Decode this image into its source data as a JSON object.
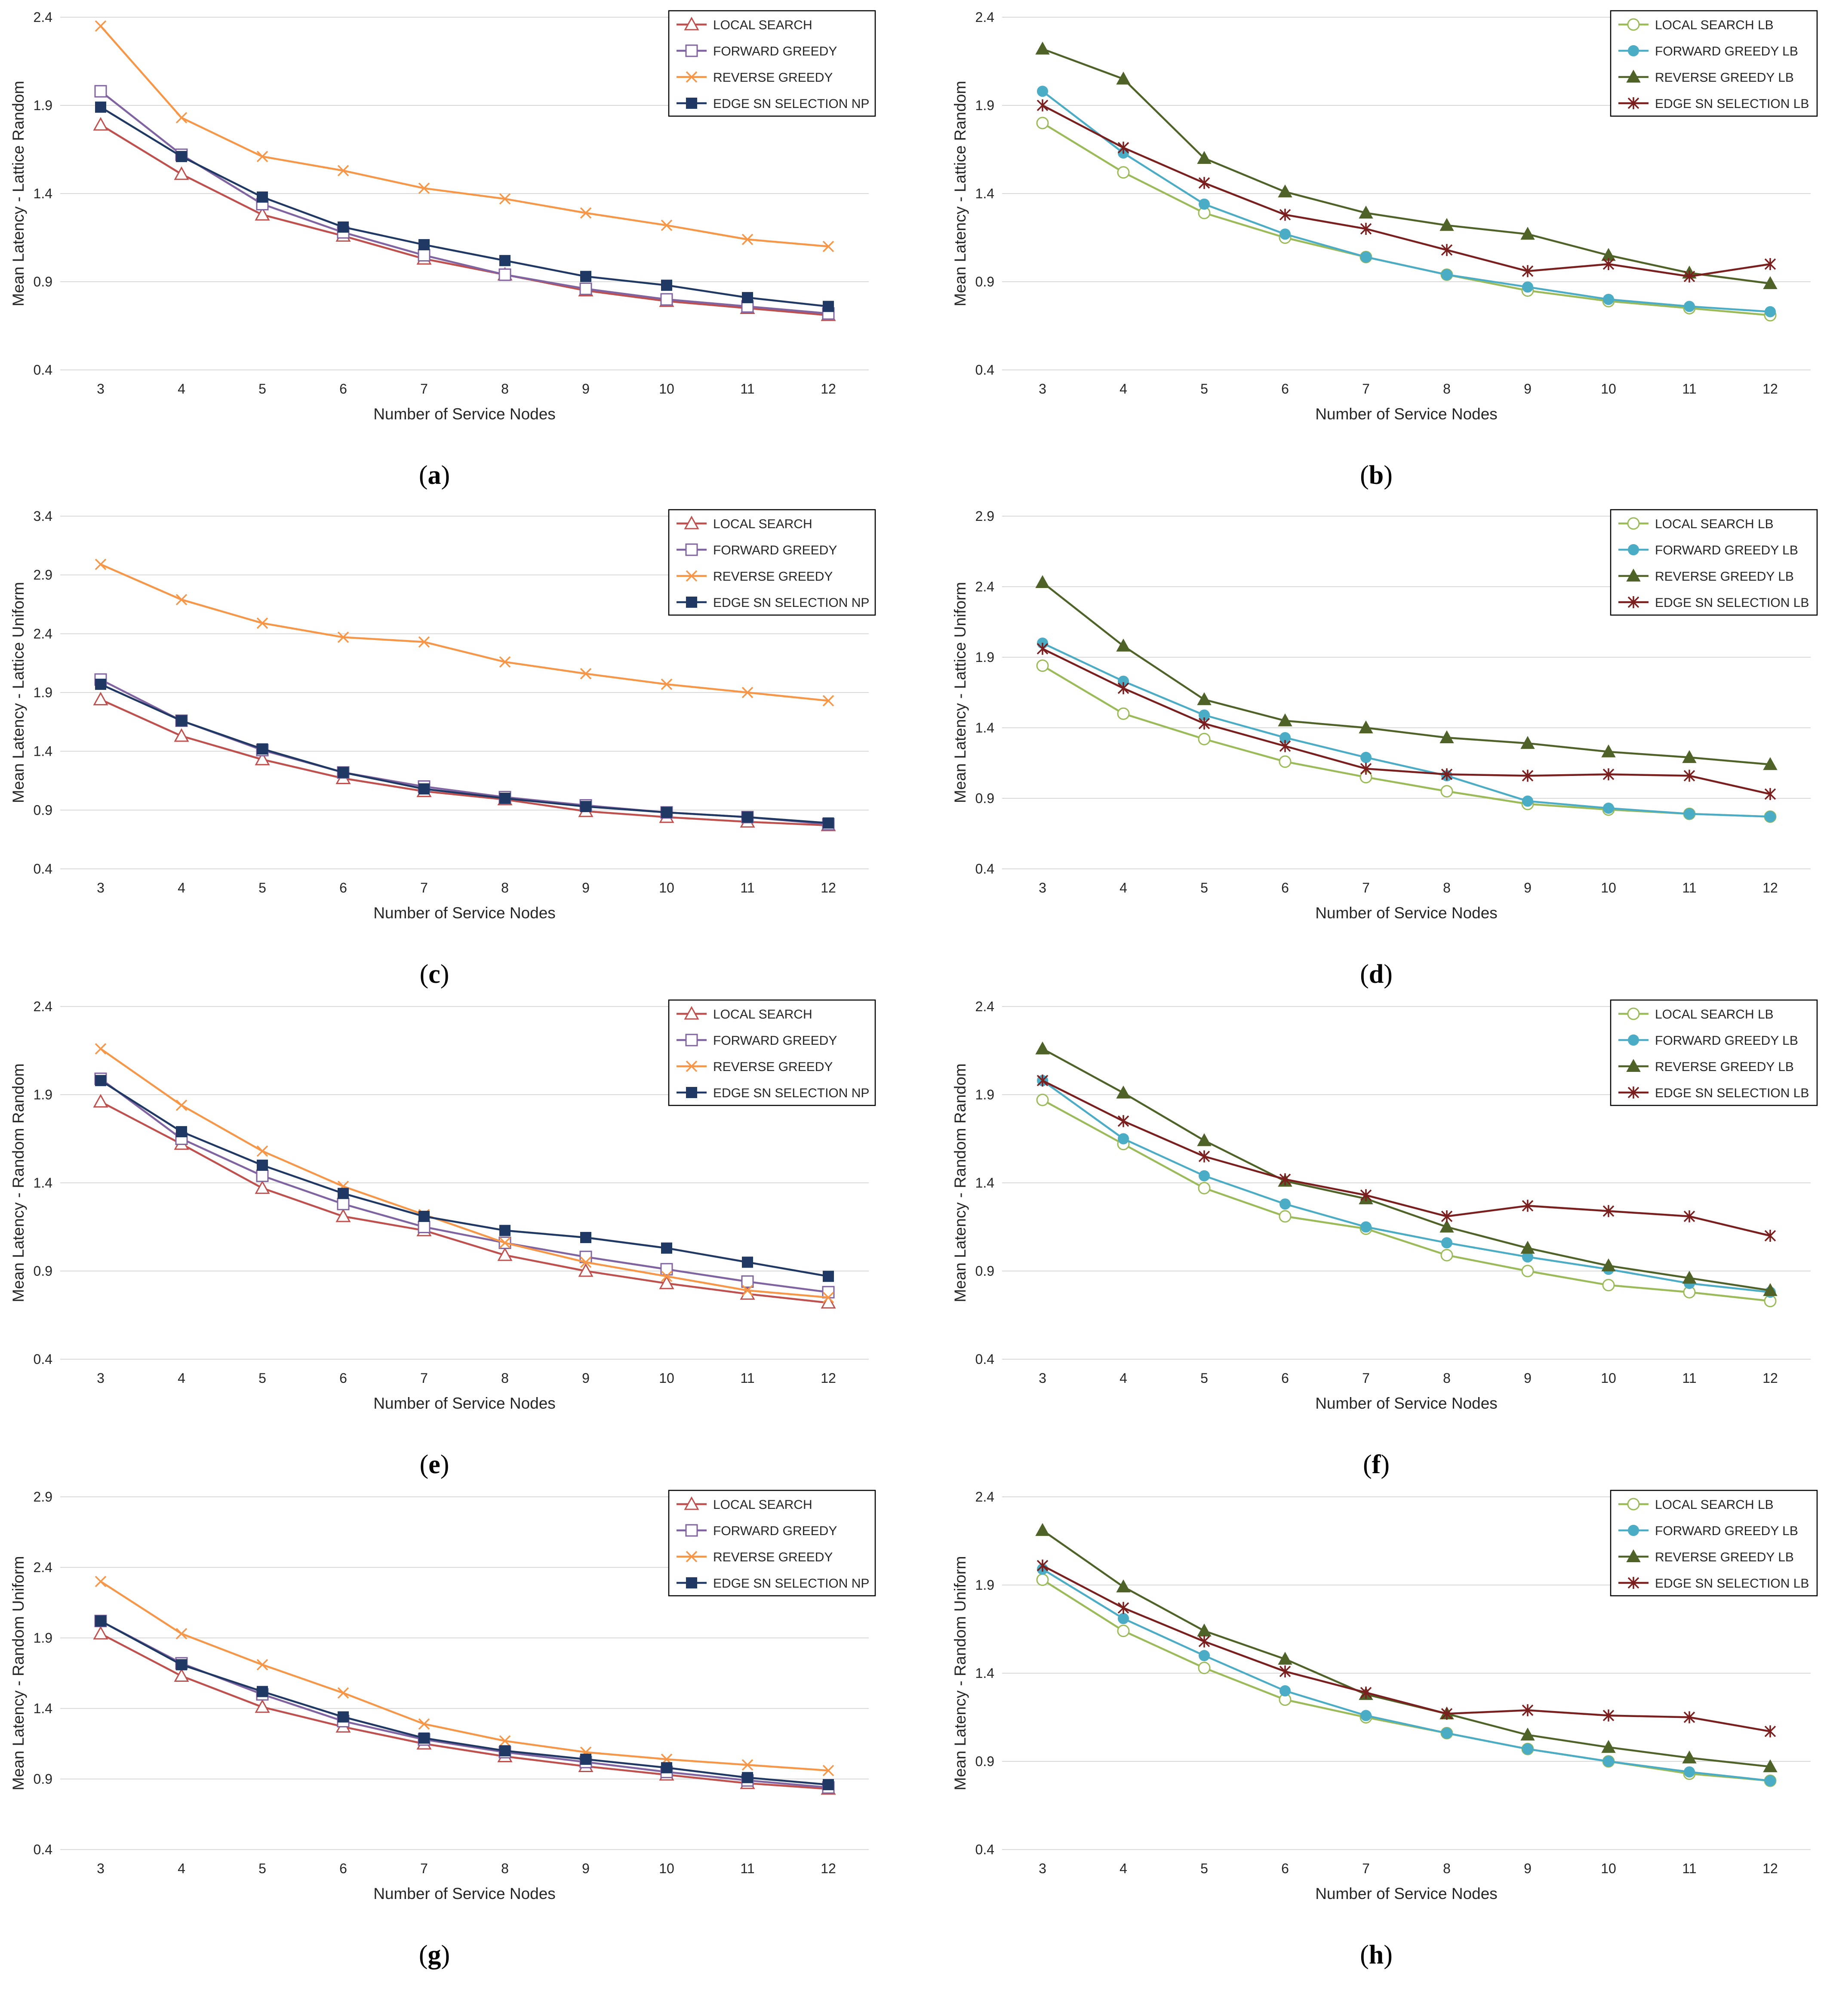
{
  "figure": {
    "x_axis_label": "Number of Service Nodes",
    "x_categories": [
      "3",
      "4",
      "5",
      "6",
      "7",
      "8",
      "9",
      "10",
      "11",
      "12"
    ]
  },
  "colors": {
    "local_search": "#c0504d",
    "forward_greedy": "#8064a2",
    "reverse_greedy": "#f79646",
    "edge_sn_np": "#1f3864",
    "local_search_lb": "#9bbb59",
    "forward_greedy_lb": "#4bacc6",
    "reverse_greedy_lb": "#4f6228",
    "edge_sn_lb": "#7b1e1e",
    "grid": "#d9d9d9",
    "text": "#262626"
  },
  "chart_data": [
    {
      "id": "a",
      "caption_label": "a",
      "type": "line",
      "ylabel": "Mean Latency - Lattice Random",
      "xlabel": "Number of Service Nodes",
      "y_ticks": [
        "0.4",
        "0.9",
        "1.4",
        "1.9",
        "2.4"
      ],
      "ylim": [
        0.4,
        2.4
      ],
      "categories": [
        "3",
        "4",
        "5",
        "6",
        "7",
        "8",
        "9",
        "10",
        "11",
        "12"
      ],
      "series": [
        {
          "name": "LOCAL SEARCH",
          "marker": "triangle-open",
          "color_key": "local_search",
          "values": [
            1.79,
            1.51,
            1.28,
            1.16,
            1.03,
            0.94,
            0.85,
            0.79,
            0.75,
            0.71
          ]
        },
        {
          "name": "FORWARD GREEDY",
          "marker": "square-open",
          "color_key": "forward_greedy",
          "values": [
            1.98,
            1.62,
            1.34,
            1.18,
            1.05,
            0.94,
            0.86,
            0.8,
            0.76,
            0.72
          ]
        },
        {
          "name": "REVERSE GREEDY",
          "marker": "x",
          "color_key": "reverse_greedy",
          "values": [
            2.35,
            1.83,
            1.61,
            1.53,
            1.43,
            1.37,
            1.29,
            1.22,
            1.14,
            1.1
          ]
        },
        {
          "name": "EDGE SN SELECTION NP",
          "marker": "square-filled",
          "color_key": "edge_sn_np",
          "values": [
            1.89,
            1.61,
            1.38,
            1.21,
            1.11,
            1.02,
            0.93,
            0.88,
            0.81,
            0.76
          ]
        }
      ]
    },
    {
      "id": "b",
      "caption_label": "b",
      "type": "line",
      "ylabel": "Mean Latency - Lattice Random",
      "xlabel": "Number of Service Nodes",
      "y_ticks": [
        "0.4",
        "0.9",
        "1.4",
        "1.9",
        "2.4"
      ],
      "ylim": [
        0.4,
        2.4
      ],
      "categories": [
        "3",
        "4",
        "5",
        "6",
        "7",
        "8",
        "9",
        "10",
        "11",
        "12"
      ],
      "series": [
        {
          "name": "LOCAL SEARCH LB",
          "marker": "circle-open",
          "color_key": "local_search_lb",
          "values": [
            1.8,
            1.52,
            1.29,
            1.15,
            1.04,
            0.94,
            0.85,
            0.79,
            0.75,
            0.71
          ]
        },
        {
          "name": "FORWARD GREEDY LB",
          "marker": "circle-filled",
          "color_key": "forward_greedy_lb",
          "values": [
            1.98,
            1.63,
            1.34,
            1.17,
            1.04,
            0.94,
            0.87,
            0.8,
            0.76,
            0.73
          ]
        },
        {
          "name": "REVERSE GREEDY LB",
          "marker": "triangle-filled",
          "color_key": "reverse_greedy_lb",
          "values": [
            2.22,
            2.05,
            1.6,
            1.41,
            1.29,
            1.22,
            1.17,
            1.05,
            0.95,
            0.89
          ]
        },
        {
          "name": "EDGE SN SELECTION LB",
          "marker": "star",
          "color_key": "edge_sn_lb",
          "values": [
            1.9,
            1.66,
            1.46,
            1.28,
            1.2,
            1.08,
            0.96,
            1.0,
            0.93,
            1.0
          ]
        }
      ]
    },
    {
      "id": "c",
      "caption_label": "c",
      "type": "line",
      "ylabel": "Mean Latency - Lattice Uniform",
      "xlabel": "Number of Service Nodes",
      "y_ticks": [
        "0.4",
        "0.9",
        "1.4",
        "1.9",
        "2.4",
        "2.9",
        "3.4"
      ],
      "ylim": [
        0.4,
        3.4
      ],
      "categories": [
        "3",
        "4",
        "5",
        "6",
        "7",
        "8",
        "9",
        "10",
        "11",
        "12"
      ],
      "series": [
        {
          "name": "LOCAL SEARCH",
          "marker": "triangle-open",
          "color_key": "local_search",
          "values": [
            1.84,
            1.53,
            1.33,
            1.17,
            1.06,
            0.99,
            0.89,
            0.84,
            0.8,
            0.77
          ]
        },
        {
          "name": "FORWARD GREEDY",
          "marker": "square-open",
          "color_key": "forward_greedy",
          "values": [
            2.01,
            1.66,
            1.41,
            1.22,
            1.1,
            1.01,
            0.94,
            0.88,
            0.84,
            0.78
          ]
        },
        {
          "name": "REVERSE GREEDY",
          "marker": "x",
          "color_key": "reverse_greedy",
          "values": [
            2.99,
            2.69,
            2.49,
            2.37,
            2.33,
            2.16,
            2.06,
            1.97,
            1.9,
            1.83
          ]
        },
        {
          "name": "EDGE SN SELECTION NP",
          "marker": "square-filled",
          "color_key": "edge_sn_np",
          "values": [
            1.97,
            1.66,
            1.42,
            1.22,
            1.08,
            1.0,
            0.93,
            0.88,
            0.84,
            0.79
          ]
        }
      ]
    },
    {
      "id": "d",
      "caption_label": "d",
      "type": "line",
      "ylabel": "Mean Latency - Lattice Uniform",
      "xlabel": "Number of Service Nodes",
      "y_ticks": [
        "0.4",
        "0.9",
        "1.4",
        "1.9",
        "2.4",
        "2.9"
      ],
      "ylim": [
        0.4,
        2.9
      ],
      "categories": [
        "3",
        "4",
        "5",
        "6",
        "7",
        "8",
        "9",
        "10",
        "11",
        "12"
      ],
      "series": [
        {
          "name": "LOCAL SEARCH LB",
          "marker": "circle-open",
          "color_key": "local_search_lb",
          "values": [
            1.84,
            1.5,
            1.32,
            1.16,
            1.05,
            0.95,
            0.86,
            0.82,
            0.79,
            0.77
          ]
        },
        {
          "name": "FORWARD GREEDY LB",
          "marker": "circle-filled",
          "color_key": "forward_greedy_lb",
          "values": [
            2.0,
            1.73,
            1.49,
            1.33,
            1.19,
            1.06,
            0.88,
            0.83,
            0.79,
            0.77
          ]
        },
        {
          "name": "REVERSE GREEDY LB",
          "marker": "triangle-filled",
          "color_key": "reverse_greedy_lb",
          "values": [
            2.43,
            1.98,
            1.6,
            1.45,
            1.4,
            1.33,
            1.29,
            1.23,
            1.19,
            1.14
          ]
        },
        {
          "name": "EDGE SN SELECTION LB",
          "marker": "star",
          "color_key": "edge_sn_lb",
          "values": [
            1.96,
            1.68,
            1.43,
            1.27,
            1.11,
            1.07,
            1.06,
            1.07,
            1.06,
            0.93
          ]
        }
      ]
    },
    {
      "id": "e",
      "caption_label": "e",
      "type": "line",
      "ylabel": "Mean Latency - Random Random",
      "xlabel": "Number of Service Nodes",
      "y_ticks": [
        "0.4",
        "0.9",
        "1.4",
        "1.9",
        "2.4"
      ],
      "ylim": [
        0.4,
        2.4
      ],
      "categories": [
        "3",
        "4",
        "5",
        "6",
        "7",
        "8",
        "9",
        "10",
        "11",
        "12"
      ],
      "series": [
        {
          "name": "LOCAL SEARCH",
          "marker": "triangle-open",
          "color_key": "local_search",
          "values": [
            1.86,
            1.62,
            1.37,
            1.21,
            1.13,
            0.99,
            0.9,
            0.83,
            0.77,
            0.72
          ]
        },
        {
          "name": "FORWARD GREEDY",
          "marker": "square-open",
          "color_key": "forward_greedy",
          "values": [
            1.99,
            1.65,
            1.44,
            1.28,
            1.15,
            1.06,
            0.98,
            0.91,
            0.84,
            0.78
          ]
        },
        {
          "name": "REVERSE GREEDY",
          "marker": "x",
          "color_key": "reverse_greedy",
          "values": [
            2.16,
            1.84,
            1.58,
            1.38,
            1.22,
            1.06,
            0.95,
            0.87,
            0.79,
            0.75
          ]
        },
        {
          "name": "EDGE SN SELECTION NP",
          "marker": "square-filled",
          "color_key": "edge_sn_np",
          "values": [
            1.98,
            1.69,
            1.5,
            1.34,
            1.21,
            1.13,
            1.09,
            1.03,
            0.95,
            0.87
          ]
        }
      ]
    },
    {
      "id": "f",
      "caption_label": "f",
      "type": "line",
      "ylabel": "Mean Latency - Random Random",
      "xlabel": "Number of Service Nodes",
      "y_ticks": [
        "0.4",
        "0.9",
        "1.4",
        "1.9",
        "2.4"
      ],
      "ylim": [
        0.4,
        2.4
      ],
      "categories": [
        "3",
        "4",
        "5",
        "6",
        "7",
        "8",
        "9",
        "10",
        "11",
        "12"
      ],
      "series": [
        {
          "name": "LOCAL SEARCH LB",
          "marker": "circle-open",
          "color_key": "local_search_lb",
          "values": [
            1.87,
            1.62,
            1.37,
            1.21,
            1.14,
            0.99,
            0.9,
            0.82,
            0.78,
            0.73
          ]
        },
        {
          "name": "FORWARD GREEDY LB",
          "marker": "circle-filled",
          "color_key": "forward_greedy_lb",
          "values": [
            1.98,
            1.65,
            1.44,
            1.28,
            1.15,
            1.06,
            0.98,
            0.91,
            0.83,
            0.78
          ]
        },
        {
          "name": "REVERSE GREEDY LB",
          "marker": "triangle-filled",
          "color_key": "reverse_greedy_lb",
          "values": [
            2.16,
            1.91,
            1.64,
            1.41,
            1.31,
            1.15,
            1.03,
            0.93,
            0.86,
            0.79
          ]
        },
        {
          "name": "EDGE SN SELECTION LB",
          "marker": "star",
          "color_key": "edge_sn_lb",
          "values": [
            1.98,
            1.75,
            1.55,
            1.42,
            1.33,
            1.21,
            1.27,
            1.24,
            1.21,
            1.1
          ]
        }
      ]
    },
    {
      "id": "g",
      "caption_label": "g",
      "type": "line",
      "ylabel": "Mean Latency - Random Uniform",
      "xlabel": "Number of Service Nodes",
      "y_ticks": [
        "0.4",
        "0.9",
        "1.4",
        "1.9",
        "2.4",
        "2.9"
      ],
      "ylim": [
        0.4,
        2.9
      ],
      "categories": [
        "3",
        "4",
        "5",
        "6",
        "7",
        "8",
        "9",
        "10",
        "11",
        "12"
      ],
      "series": [
        {
          "name": "LOCAL SEARCH",
          "marker": "triangle-open",
          "color_key": "local_search",
          "values": [
            1.93,
            1.63,
            1.41,
            1.27,
            1.15,
            1.06,
            0.99,
            0.93,
            0.87,
            0.83
          ]
        },
        {
          "name": "FORWARD GREEDY",
          "marker": "square-open",
          "color_key": "forward_greedy",
          "values": [
            2.02,
            1.72,
            1.5,
            1.31,
            1.18,
            1.09,
            1.02,
            0.95,
            0.89,
            0.84
          ]
        },
        {
          "name": "REVERSE GREEDY",
          "marker": "x",
          "color_key": "reverse_greedy",
          "values": [
            2.3,
            1.93,
            1.71,
            1.51,
            1.29,
            1.17,
            1.09,
            1.04,
            1.0,
            0.96
          ]
        },
        {
          "name": "EDGE SN SELECTION NP",
          "marker": "square-filled",
          "color_key": "edge_sn_np",
          "values": [
            2.02,
            1.71,
            1.52,
            1.34,
            1.19,
            1.1,
            1.04,
            0.98,
            0.91,
            0.86
          ]
        }
      ]
    },
    {
      "id": "h",
      "caption_label": "h",
      "type": "line",
      "ylabel": "Mean Latency - Random Uniform",
      "xlabel": "Number of Service Nodes",
      "y_ticks": [
        "0.4",
        "0.9",
        "1.4",
        "1.9",
        "2.4"
      ],
      "ylim": [
        0.4,
        2.4
      ],
      "categories": [
        "3",
        "4",
        "5",
        "6",
        "7",
        "8",
        "9",
        "10",
        "11",
        "12"
      ],
      "series": [
        {
          "name": "LOCAL SEARCH LB",
          "marker": "circle-open",
          "color_key": "local_search_lb",
          "values": [
            1.93,
            1.64,
            1.43,
            1.25,
            1.15,
            1.06,
            0.97,
            0.9,
            0.83,
            0.79
          ]
        },
        {
          "name": "FORWARD GREEDY LB",
          "marker": "circle-filled",
          "color_key": "forward_greedy_lb",
          "values": [
            1.99,
            1.71,
            1.5,
            1.3,
            1.16,
            1.06,
            0.97,
            0.9,
            0.84,
            0.79
          ]
        },
        {
          "name": "REVERSE GREEDY LB",
          "marker": "triangle-filled",
          "color_key": "reverse_greedy_lb",
          "values": [
            2.21,
            1.89,
            1.64,
            1.48,
            1.28,
            1.17,
            1.05,
            0.98,
            0.92,
            0.87
          ]
        },
        {
          "name": "EDGE SN SELECTION LB",
          "marker": "star",
          "color_key": "edge_sn_lb",
          "values": [
            2.01,
            1.77,
            1.58,
            1.41,
            1.29,
            1.17,
            1.19,
            1.16,
            1.15,
            1.07
          ]
        }
      ]
    }
  ]
}
